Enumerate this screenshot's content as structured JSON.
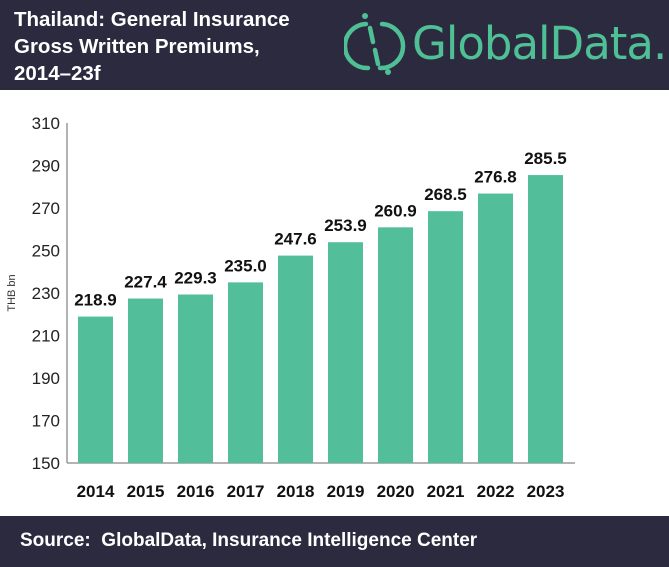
{
  "header": {
    "title": "Thailand: General Insurance\nGross Written Premiums,\n2014–23f",
    "logo_text": "GlobalData.",
    "logo_color": "#4fbf95",
    "background": "#2c2a3e"
  },
  "footer": {
    "source": "Source:  GlobalData, Insurance Intelligence Center"
  },
  "chart_data": {
    "type": "bar",
    "title": "Thailand: General Insurance Gross Written Premiums, 2014–23f",
    "xlabel": "",
    "ylabel": "THB bn",
    "ylim": [
      150,
      310
    ],
    "yticks": [
      150,
      170,
      190,
      210,
      230,
      250,
      270,
      290,
      310
    ],
    "categories": [
      "2014",
      "2015",
      "2016",
      "2017",
      "2018",
      "2019",
      "2020",
      "2021",
      "2022",
      "2023"
    ],
    "values": [
      218.9,
      227.4,
      229.3,
      235.0,
      247.6,
      253.9,
      260.9,
      268.5,
      276.8,
      285.5
    ],
    "value_labels": [
      "218.9",
      "227.4",
      "229.3",
      "235.0",
      "247.6",
      "253.9",
      "260.9",
      "268.5",
      "276.8",
      "285.5"
    ],
    "bar_color": "#53bf9a",
    "grid": false,
    "legend": "none"
  }
}
